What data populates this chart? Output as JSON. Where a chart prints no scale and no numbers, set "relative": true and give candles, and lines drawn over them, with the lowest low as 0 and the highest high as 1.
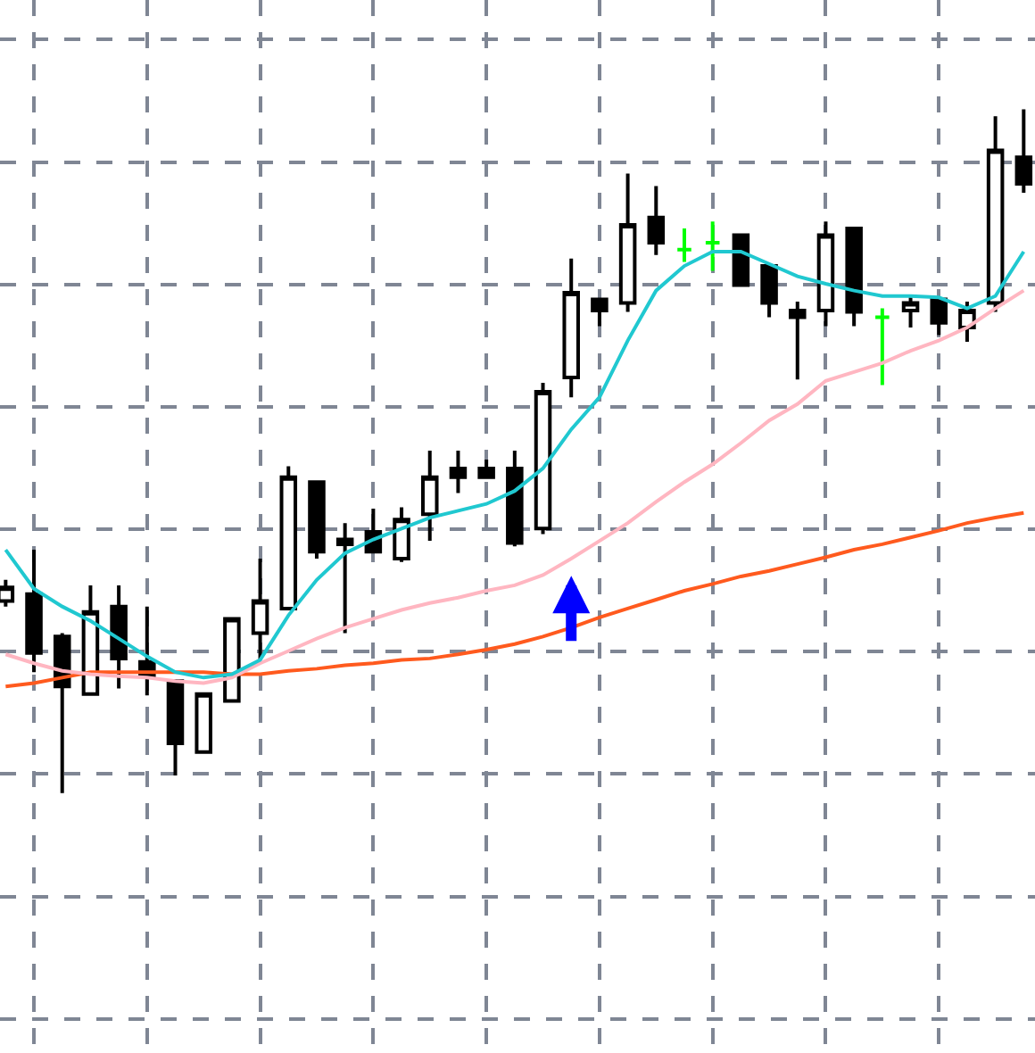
{
  "chart_data": {
    "type": "candlestick",
    "relative": true,
    "grid": true,
    "categories": [
      null,
      null,
      null,
      null,
      null,
      null,
      null,
      null,
      null,
      null,
      null,
      null,
      null,
      null,
      null,
      null,
      null,
      null,
      null,
      null,
      null,
      null,
      null,
      null,
      null,
      null,
      null,
      null,
      null,
      null,
      null,
      null,
      null,
      null,
      null,
      null,
      null
    ],
    "ohlc": [
      [
        0.281,
        0.312,
        0.273,
        0.301
      ],
      [
        0.291,
        0.356,
        0.177,
        0.205
      ],
      [
        0.229,
        0.234,
        0,
        0.156
      ],
      [
        0.145,
        0.304,
        0.145,
        0.265
      ],
      [
        0.273,
        0.304,
        0.153,
        0.197
      ],
      [
        0.192,
        0.273,
        0.143,
        0.171
      ],
      [
        0.164,
        0.164,
        0.026,
        0.073
      ],
      [
        0.06,
        0.145,
        0.06,
        0.145
      ],
      [
        0.135,
        0.255,
        0.135,
        0.255
      ],
      [
        0.234,
        0.343,
        0.195,
        0.281
      ],
      [
        0.27,
        0.478,
        0.27,
        0.462
      ],
      [
        0.455,
        0.455,
        0.343,
        0.353
      ],
      [
        0.371,
        0.395,
        0.234,
        0.364
      ],
      [
        0.382,
        0.416,
        0.353,
        0.353
      ],
      [
        0.343,
        0.418,
        0.338,
        0.4
      ],
      [
        0.408,
        0.501,
        0.369,
        0.462
      ],
      [
        0.475,
        0.501,
        0.439,
        0.462
      ],
      [
        0.475,
        0.488,
        0.462,
        0.462
      ],
      [
        0.475,
        0.501,
        0.361,
        0.366
      ],
      [
        0.387,
        0.6,
        0.379,
        0.587
      ],
      [
        0.608,
        0.782,
        0.579,
        0.732
      ],
      [
        0.722,
        0.722,
        0.683,
        0.706
      ],
      [
        0.717,
        0.906,
        0.704,
        0.831
      ],
      [
        0.842,
        0.888,
        0.787,
        0.805
      ],
      [
        0.795,
        0.826,
        0.777,
        0.795
      ],
      [
        0.805,
        0.836,
        0.764,
        0.805
      ],
      [
        0.816,
        0.816,
        0.743,
        0.743
      ],
      [
        0.771,
        0.771,
        0.696,
        0.717
      ],
      [
        0.706,
        0.719,
        0.605,
        0.696
      ],
      [
        0.706,
        0.836,
        0.683,
        0.816
      ],
      [
        0.826,
        0.826,
        0.683,
        0.704
      ],
      [
        0.696,
        0.709,
        0.597,
        0.696
      ],
      [
        0.706,
        0.725,
        0.681,
        0.717
      ],
      [
        0.722,
        0.722,
        0.67,
        0.688
      ],
      [
        0.681,
        0.719,
        0.66,
        0.706
      ],
      [
        0.717,
        0.99,
        0.704,
        0.94
      ],
      [
        0.93,
        1,
        0.878,
        0.891
      ]
    ],
    "colors": [
      "#ffffff",
      "#000000",
      "#000000",
      "#ffffff",
      "#000000",
      "#000000",
      "#000000",
      "#ffffff",
      "#ffffff",
      "#ffffff",
      "#ffffff",
      "#000000",
      "#000000",
      "#000000",
      "#ffffff",
      "#ffffff",
      "#000000",
      "#000000",
      "#000000",
      "#ffffff",
      "#ffffff",
      "#000000",
      "#ffffff",
      "#000000",
      "#00ff00",
      "#00ff00",
      "#000000",
      "#000000",
      "#000000",
      "#ffffff",
      "#000000",
      "#00ff00",
      "#ffffff",
      "#000000",
      "#ffffff",
      "#ffffff",
      "#000000"
    ],
    "series": [
      {
        "type": "line",
        "color": "#ff5a1e",
        "values": [
          0.156,
          0.161,
          0.169,
          0.177,
          0.177,
          0.177,
          0.177,
          0.177,
          0.174,
          0.174,
          0.179,
          0.182,
          0.187,
          0.19,
          0.195,
          0.197,
          0.203,
          0.21,
          0.218,
          0.229,
          0.242,
          0.257,
          0.27,
          0.283,
          0.296,
          0.306,
          0.317,
          0.325,
          0.335,
          0.345,
          0.356,
          0.364,
          0.374,
          0.384,
          0.395,
          0.403,
          0.41
        ]
      },
      {
        "type": "line",
        "color": "#ffb6c1",
        "values": [
          0.203,
          0.19,
          0.179,
          0.174,
          0.171,
          0.169,
          0.164,
          0.161,
          0.169,
          0.19,
          0.208,
          0.226,
          0.242,
          0.255,
          0.268,
          0.278,
          0.286,
          0.296,
          0.304,
          0.319,
          0.343,
          0.369,
          0.395,
          0.426,
          0.455,
          0.481,
          0.512,
          0.545,
          0.569,
          0.603,
          0.616,
          0.629,
          0.647,
          0.662,
          0.681,
          0.709,
          0.735
        ]
      },
      {
        "type": "line",
        "color": "#20c8d0",
        "values": [
          0.356,
          0.299,
          0.273,
          0.252,
          0.226,
          0.2,
          0.177,
          0.169,
          0.174,
          0.195,
          0.26,
          0.312,
          0.351,
          0.371,
          0.387,
          0.403,
          0.413,
          0.423,
          0.442,
          0.475,
          0.532,
          0.579,
          0.662,
          0.735,
          0.771,
          0.792,
          0.792,
          0.774,
          0.756,
          0.745,
          0.735,
          0.727,
          0.727,
          0.725,
          0.709,
          0.727,
          0.792
        ]
      }
    ]
  }
}
